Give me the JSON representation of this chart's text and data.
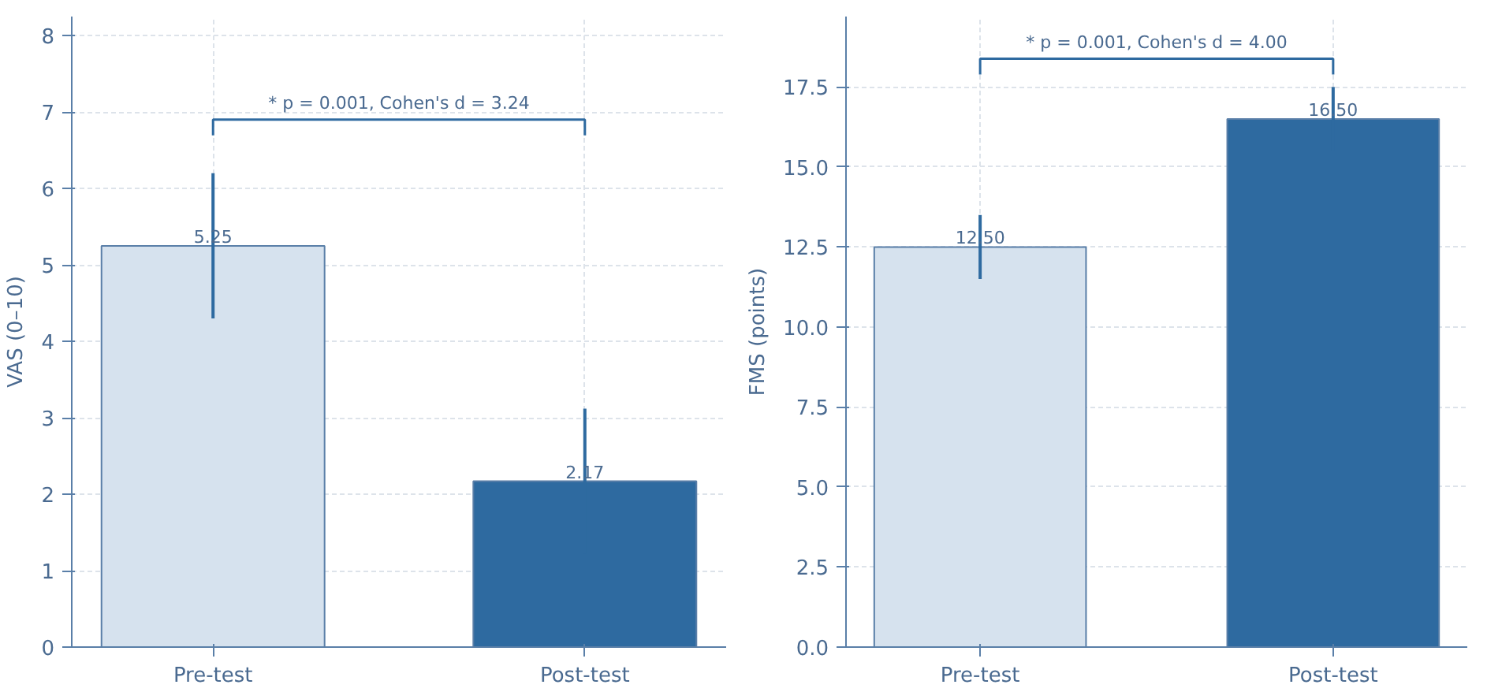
{
  "chart_data": [
    {
      "type": "bar",
      "ylabel": "VAS (0–10)",
      "categories": [
        "Pre-test",
        "Post-test"
      ],
      "values": [
        5.25,
        2.17
      ],
      "colors": [
        "#d6e2ee",
        "#2e6aa0"
      ],
      "errors": [
        0.95,
        0.95
      ],
      "value_labels": [
        "5.25",
        "2.17"
      ],
      "ylim": [
        0,
        8.25
      ],
      "yticks": [
        0,
        1,
        2,
        3,
        4,
        5,
        6,
        7,
        8
      ],
      "grid": true,
      "annotations": [
        "* p = 0.001, Cohen's d = 3.24"
      ]
    },
    {
      "type": "bar",
      "ylabel": "FMS (points)",
      "categories": [
        "Pre-test",
        "Post-test"
      ],
      "values": [
        12.5,
        16.5
      ],
      "colors": [
        "#d6e2ee",
        "#2e6aa0"
      ],
      "errors": [
        1.0,
        1.0
      ],
      "value_labels": [
        "12.50",
        "16.50"
      ],
      "ylim": [
        0,
        19.7
      ],
      "yticks": [
        {
          "value": 0,
          "label": "0.0"
        },
        {
          "value": 2.5,
          "label": "2.5"
        },
        {
          "value": 5,
          "label": "5.0"
        },
        {
          "value": 7.5,
          "label": "7.5"
        },
        {
          "value": 10,
          "label": "10.0"
        },
        {
          "value": 12.5,
          "label": "12.5"
        },
        {
          "value": 15,
          "label": "15.0"
        },
        {
          "value": 17.5,
          "label": "17.5"
        }
      ],
      "grid": true,
      "annotations": [
        "* p = 0.001, Cohen's d = 4.00"
      ]
    }
  ]
}
